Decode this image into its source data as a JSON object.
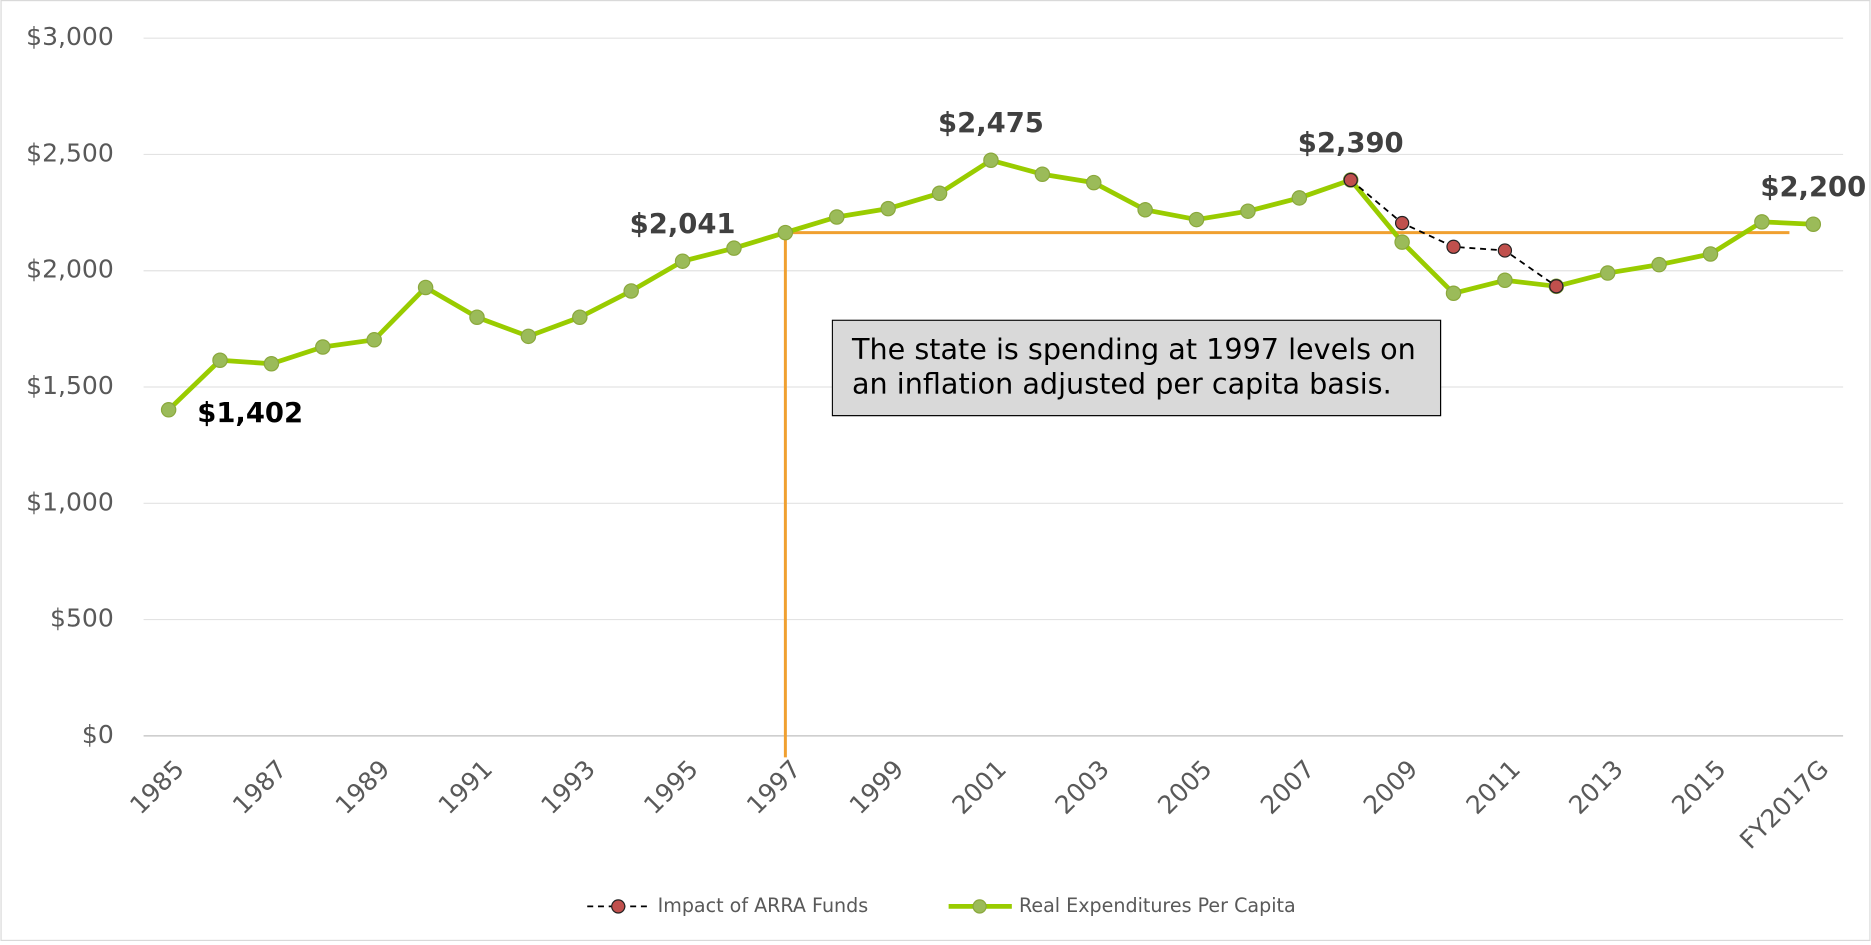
{
  "chart_data": {
    "type": "line",
    "categories": [
      "1985",
      null,
      "1987",
      null,
      "1989",
      null,
      "1991",
      null,
      "1993",
      null,
      "1995",
      null,
      "1997",
      null,
      "1999",
      null,
      "2001",
      null,
      "2003",
      null,
      "2005",
      null,
      "2007",
      null,
      "2009",
      null,
      "2011",
      null,
      "2013",
      null,
      "2015",
      null,
      "FY2017G"
    ],
    "series": [
      {
        "name": "Impact of ARRA Funds",
        "color": "#c0504d",
        "line_color": "#000000",
        "dashed": true,
        "values": [
          null,
          null,
          null,
          null,
          null,
          null,
          null,
          null,
          null,
          null,
          null,
          null,
          null,
          null,
          null,
          null,
          null,
          null,
          null,
          null,
          null,
          null,
          null,
          2390,
          2205,
          2103,
          2087,
          1933,
          null,
          null,
          null,
          null,
          null
        ]
      },
      {
        "name": "Real Expenditures Per Capita",
        "color": "#99cc00",
        "marker_color": "#9bbb59",
        "dashed": false,
        "values": [
          1402,
          1615,
          1600,
          1672,
          1703,
          1928,
          1800,
          1718,
          1800,
          1913,
          2041,
          2097,
          2164,
          2231,
          2267,
          2333,
          2475,
          2415,
          2379,
          2262,
          2220,
          2256,
          2313,
          2390,
          2123,
          1903,
          1959,
          1933,
          1990,
          2026,
          2072,
          2210,
          2200
        ],
        "value_labels": [
          "$1,402",
          null,
          null,
          null,
          null,
          null,
          null,
          null,
          null,
          null,
          "$2,041",
          null,
          null,
          null,
          null,
          null,
          "$2,475",
          null,
          null,
          null,
          null,
          null,
          null,
          "$2,390",
          null,
          null,
          null,
          null,
          null,
          null,
          null,
          null,
          "$2,200"
        ]
      }
    ],
    "ylim": [
      0,
      3000
    ],
    "yticks": [
      {
        "value": 0,
        "label": "$0"
      },
      {
        "value": 500,
        "label": "$500"
      },
      {
        "value": 1000,
        "label": "$1,000"
      },
      {
        "value": 1500,
        "label": "$1,500"
      },
      {
        "value": 2000,
        "label": "$2,000"
      },
      {
        "value": 2500,
        "label": "$2,500"
      },
      {
        "value": 3000,
        "label": "$3,000"
      }
    ],
    "grid": true,
    "legend": "bottom",
    "reference": {
      "category": "1997",
      "color": "#f0a030"
    },
    "annotation": "The state is spending at 1997 levels on an inflation adjusted per capita basis."
  }
}
